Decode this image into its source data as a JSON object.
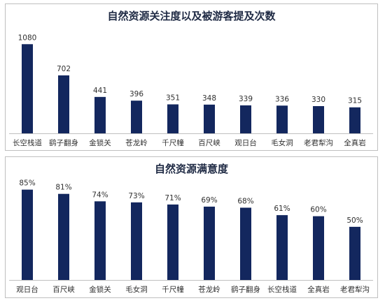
{
  "colors": {
    "bar": "#13275e",
    "axis": "#bfbfbf",
    "text": "#303030"
  },
  "chart_data": [
    {
      "type": "bar",
      "title": "自然资源关注度以及被游客提及次数",
      "categories": [
        "长空栈道",
        "鹞子翻身",
        "金锁关",
        "苍龙岭",
        "千尺幢",
        "百尺峡",
        "观日台",
        "毛女洞",
        "老君犁沟",
        "全真岩"
      ],
      "values": [
        1080,
        702,
        441,
        396,
        351,
        348,
        339,
        336,
        330,
        315
      ],
      "value_labels": [
        "1080",
        "702",
        "441",
        "396",
        "351",
        "348",
        "339",
        "336",
        "330",
        "315"
      ],
      "ylim": [
        0,
        1150
      ]
    },
    {
      "type": "bar",
      "title": "自然资源满意度",
      "categories": [
        "观日台",
        "百尺峡",
        "金锁关",
        "毛女洞",
        "千尺幢",
        "苍龙岭",
        "鹞子翻身",
        "长空栈道",
        "全真岩",
        "老君犁沟"
      ],
      "values": [
        85,
        81,
        74,
        73,
        71,
        69,
        68,
        61,
        60,
        50
      ],
      "value_labels": [
        "85%",
        "81%",
        "74%",
        "73%",
        "71%",
        "69%",
        "68%",
        "61%",
        "60%",
        "50%"
      ],
      "ylim": [
        0,
        90
      ]
    }
  ]
}
